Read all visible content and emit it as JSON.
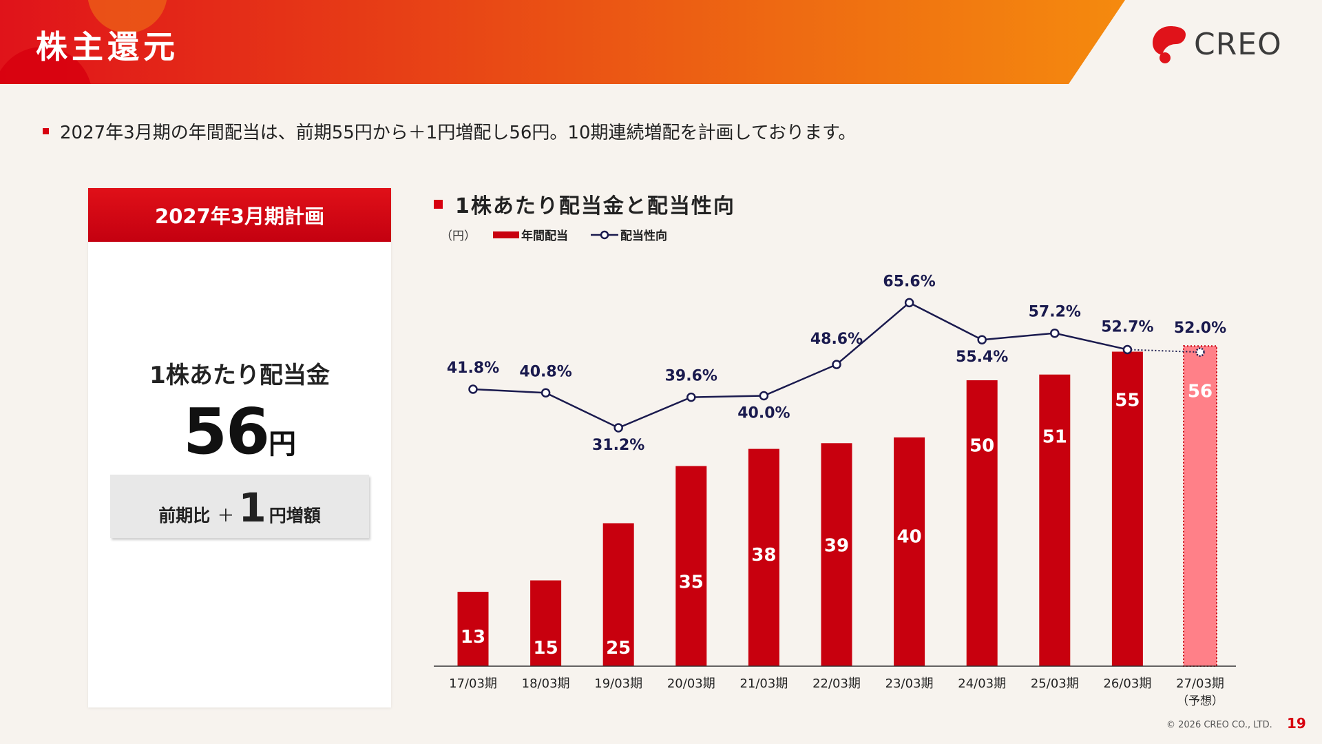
{
  "header": {
    "title": "株主還元",
    "logo_text": "CREO"
  },
  "lead": "2027年3月期の年間配当は、前期55円から＋1円増配し56円。10期連続増配を計画しております。",
  "card": {
    "header": "2027年3月期計画",
    "label": "1株あたり配当金",
    "value": "56",
    "unit": "円",
    "diff_prefix": "前期比",
    "diff_sign": "＋",
    "diff_value": "1",
    "diff_suffix": "円増額"
  },
  "chart_heading": "1株あたり配当金と配当性向",
  "colors": {
    "accent": "#d7000f",
    "bar": "#c8000e",
    "bar_forecast": "#ff8088",
    "line": "#1a1a4e",
    "background": "#f7f3ee"
  },
  "chart_data": {
    "type": "bar",
    "ylabel": "（円）",
    "categories": [
      "17/03期",
      "18/03期",
      "19/03期",
      "20/03期",
      "21/03期",
      "22/03期",
      "23/03期",
      "24/03期",
      "25/03期",
      "26/03期",
      "27/03期"
    ],
    "category_notes": [
      "",
      "",
      "",
      "",
      "",
      "",
      "",
      "",
      "",
      "",
      "（予想）"
    ],
    "series": [
      {
        "name": "年間配当",
        "type": "bar",
        "values": [
          13,
          15,
          25,
          35,
          38,
          39,
          40,
          50,
          51,
          55,
          56
        ]
      },
      {
        "name": "配当性向",
        "type": "line",
        "values": [
          41.8,
          40.8,
          31.2,
          39.6,
          40.0,
          48.6,
          65.6,
          55.4,
          57.2,
          52.7,
          52.0
        ],
        "labels": [
          "41.8%",
          "40.8%",
          "31.2%",
          "39.6%",
          "40.0%",
          "48.6%",
          "65.6%",
          "55.4%",
          "57.2%",
          "52.7%",
          "52.0%"
        ]
      }
    ],
    "forecast_index": 10,
    "legend": "top-left",
    "grid": false
  },
  "footer": {
    "copyright": "© 2026 CREO CO., LTD.",
    "page": "19"
  }
}
